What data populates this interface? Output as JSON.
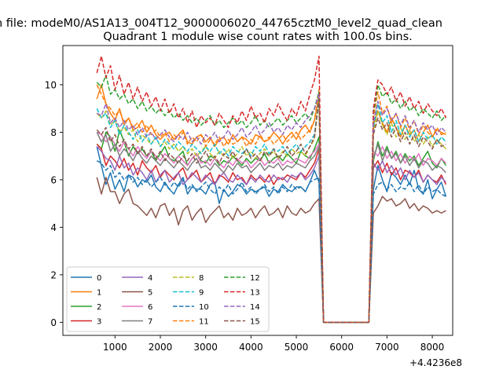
{
  "figure": {
    "suptitle": "n file: modeM0/AS1A13_004T12_9000006020_44765cztM0_level2_quad_clean"
  },
  "chart_data": {
    "type": "line",
    "title": "Quadrant 1 module wise count rates with 100.0s bins.",
    "xlabel": "",
    "ylabel": "",
    "x_offset_label": "+4.4236e8",
    "xlim": [
      -150,
      8450
    ],
    "ylim": [
      -0.55,
      11.65
    ],
    "xticks": [
      1000,
      2000,
      3000,
      4000,
      5000,
      6000,
      7000,
      8000
    ],
    "yticks": [
      0,
      2,
      4,
      6,
      8,
      10
    ],
    "grid": false,
    "legend": {
      "placement": "lower-left",
      "columns": 4
    },
    "x_start": 600,
    "x_step": 100,
    "x_end": 8200,
    "gap_range": [
      5700,
      6700
    ],
    "series": [
      {
        "name": "0",
        "color": "#1f77b4",
        "dash": "solid",
        "seg1": [
          7.4,
          6.6,
          5.8,
          6.3,
          5.6,
          6.0,
          5.5,
          6.2,
          6.1,
          5.7,
          6.0,
          5.9,
          6.2,
          5.7,
          5.5,
          5.9,
          5.6,
          5.4,
          5.8,
          6.1,
          5.4,
          5.7,
          5.6,
          5.6,
          5.4,
          5.8,
          5.9,
          5.0,
          5.6,
          5.3,
          5.5,
          5.8,
          5.7,
          5.4,
          5.6,
          5.5,
          5.6,
          5.7,
          5.3,
          5.6,
          5.5,
          5.8,
          5.6,
          5.5,
          5.7,
          5.7,
          5.5,
          5.9,
          6.4,
          5.9
        ],
        "seg2": [
          5.6,
          6.6,
          6.0,
          5.5,
          6.3,
          6.1,
          5.8,
          6.2,
          5.8,
          6.4,
          5.6,
          5.4,
          6.0,
          5.2,
          5.6,
          5.9,
          5.3
        ]
      },
      {
        "name": "1",
        "color": "#ff7f0e",
        "dash": "solid",
        "seg1": [
          9.4,
          10.0,
          9.2,
          8.8,
          8.5,
          9.0,
          8.3,
          8.6,
          8.1,
          8.2,
          8.5,
          8.0,
          8.3,
          7.9,
          7.7,
          7.9,
          8.0,
          7.7,
          7.9,
          8.1,
          7.6,
          7.5,
          7.8,
          7.9,
          7.6,
          7.8,
          7.4,
          7.7,
          7.8,
          7.5,
          7.9,
          7.6,
          7.8,
          7.7,
          7.5,
          7.9,
          7.8,
          7.6,
          7.7,
          8.0,
          7.8,
          7.5,
          7.8,
          8.0,
          7.7,
          8.1,
          8.3,
          8.0,
          8.5,
          9.5
        ],
        "seg2": [
          8.3,
          8.9,
          8.4,
          8.0,
          8.6,
          8.2,
          7.8,
          8.3,
          7.9,
          8.1,
          7.6,
          8.0,
          8.3,
          7.8,
          8.1,
          8.0,
          7.9
        ]
      },
      {
        "name": "2",
        "color": "#2ca02c",
        "dash": "solid",
        "seg1": [
          7.5,
          7.3,
          8.0,
          7.8,
          7.2,
          8.1,
          7.6,
          7.0,
          7.4,
          7.1,
          7.3,
          7.0,
          7.2,
          6.8,
          7.1,
          7.4,
          6.9,
          6.8,
          7.0,
          7.2,
          6.6,
          6.9,
          7.1,
          6.8,
          6.7,
          7.0,
          6.9,
          6.6,
          6.8,
          6.7,
          7.0,
          6.8,
          6.6,
          6.9,
          6.7,
          6.9,
          6.8,
          7.1,
          6.7,
          6.9,
          7.0,
          6.8,
          7.1,
          6.9,
          6.7,
          7.2,
          7.0,
          6.9,
          7.3,
          7.8
        ],
        "seg2": [
          6.8,
          7.6,
          7.0,
          7.4,
          6.9,
          7.2,
          6.7,
          7.1,
          6.8,
          7.0,
          6.6,
          6.9,
          7.2,
          6.7,
          6.5,
          6.9,
          6.6
        ]
      },
      {
        "name": "3",
        "color": "#d62728",
        "dash": "solid",
        "seg1": [
          7.5,
          7.3,
          6.6,
          7.0,
          6.8,
          6.5,
          6.9,
          6.4,
          6.7,
          6.2,
          6.8,
          6.5,
          6.3,
          6.6,
          6.1,
          6.4,
          6.2,
          6.0,
          6.3,
          6.5,
          6.0,
          6.2,
          6.4,
          5.9,
          6.1,
          6.3,
          5.8,
          6.2,
          6.1,
          5.9,
          6.3,
          6.0,
          6.1,
          5.8,
          6.2,
          6.0,
          6.1,
          5.9,
          6.2,
          5.8,
          6.1,
          6.0,
          6.2,
          6.1,
          6.0,
          6.3,
          6.1,
          6.4,
          6.7,
          7.3
        ],
        "seg2": [
          6.5,
          6.8,
          6.3,
          6.7,
          6.2,
          6.5,
          6.0,
          6.4,
          6.3,
          6.1,
          6.4,
          5.9,
          6.2,
          6.0,
          5.9,
          6.2,
          5.8
        ]
      },
      {
        "name": "4",
        "color": "#9467bd",
        "dash": "solid",
        "seg1": [
          7.4,
          7.2,
          6.9,
          6.8,
          6.4,
          7.0,
          6.5,
          6.7,
          6.2,
          6.5,
          6.3,
          6.0,
          6.4,
          5.9,
          6.2,
          6.4,
          5.9,
          6.1,
          6.3,
          5.8,
          6.0,
          6.3,
          6.1,
          5.9,
          6.2,
          6.0,
          5.8,
          6.1,
          6.3,
          6.0,
          5.9,
          6.2,
          6.0,
          5.8,
          6.1,
          5.9,
          6.2,
          6.0,
          5.9,
          6.2,
          6.0,
          6.1,
          5.9,
          6.2,
          6.1,
          6.3,
          6.0,
          6.2,
          6.5,
          7.0
        ],
        "seg2": [
          6.7,
          6.4,
          6.8,
          6.3,
          6.6,
          6.2,
          6.5,
          6.0,
          6.4,
          6.1,
          6.3,
          5.9,
          6.2,
          6.0,
          5.8,
          6.1,
          5.9
        ]
      },
      {
        "name": "5",
        "color": "#8c564b",
        "dash": "solid",
        "seg1": [
          6.1,
          5.4,
          6.1,
          5.5,
          5.5,
          5.0,
          5.4,
          5.6,
          5.0,
          4.9,
          4.7,
          4.5,
          4.8,
          4.4,
          4.9,
          5.0,
          4.5,
          4.8,
          4.1,
          4.7,
          4.9,
          4.3,
          4.6,
          4.8,
          4.2,
          4.5,
          4.7,
          4.9,
          4.4,
          4.6,
          4.3,
          4.8,
          4.5,
          4.6,
          4.8,
          4.4,
          4.7,
          4.9,
          4.5,
          4.6,
          4.8,
          4.4,
          4.9,
          4.6,
          4.5,
          4.8,
          4.6,
          4.7,
          5.0,
          5.2
        ],
        "seg2": [
          4.6,
          4.9,
          5.3,
          5.1,
          5.2,
          4.9,
          5.0,
          5.2,
          4.8,
          5.0,
          4.7,
          4.9,
          4.8,
          4.6,
          4.7,
          4.6,
          4.7
        ]
      },
      {
        "name": "6",
        "color": "#e377c2",
        "dash": "solid",
        "seg1": [
          8.0,
          7.9,
          7.6,
          7.8,
          7.5,
          7.2,
          7.6,
          7.3,
          7.0,
          7.4,
          7.1,
          6.9,
          7.2,
          7.0,
          6.8,
          7.1,
          6.9,
          6.7,
          7.0,
          6.8,
          6.6,
          6.9,
          7.1,
          6.7,
          6.8,
          6.6,
          6.9,
          6.7,
          6.5,
          6.8,
          6.6,
          6.9,
          6.7,
          6.8,
          6.5,
          6.7,
          6.9,
          6.6,
          6.8,
          6.7,
          6.9,
          6.6,
          6.8,
          6.7,
          6.9,
          6.8,
          6.7,
          7.0,
          7.2,
          7.5
        ],
        "seg2": [
          7.2,
          7.0,
          7.4,
          6.9,
          7.2,
          6.8,
          7.1,
          6.7,
          7.0,
          6.8,
          7.1,
          6.6,
          6.9,
          6.8,
          6.6,
          6.9,
          6.7
        ]
      },
      {
        "name": "7",
        "color": "#7f7f7f",
        "dash": "solid",
        "seg1": [
          8.0,
          7.6,
          7.9,
          7.2,
          7.5,
          7.0,
          7.3,
          7.1,
          6.8,
          7.2,
          6.9,
          6.7,
          7.0,
          6.8,
          6.6,
          6.9,
          6.7,
          6.5,
          6.8,
          6.6,
          6.4,
          6.7,
          6.9,
          6.5,
          6.6,
          6.4,
          6.7,
          6.5,
          6.3,
          6.6,
          6.4,
          6.7,
          6.5,
          6.6,
          6.3,
          6.5,
          6.7,
          6.4,
          6.6,
          6.5,
          6.7,
          6.4,
          6.6,
          6.5,
          6.7,
          6.6,
          6.5,
          6.8,
          7.0,
          7.4
        ],
        "seg2": [
          6.9,
          7.5,
          6.8,
          7.3,
          6.9,
          7.1,
          6.7,
          7.0,
          6.6,
          6.9,
          6.5,
          6.8,
          6.7,
          6.4,
          6.6,
          6.5,
          6.3
        ]
      },
      {
        "name": "8",
        "color": "#bcbd22",
        "dash": "dashed",
        "seg1": [
          8.8,
          8.6,
          8.9,
          8.3,
          8.5,
          8.0,
          8.2,
          7.9,
          8.1,
          7.6,
          7.9,
          7.7,
          7.5,
          7.8,
          7.4,
          7.6,
          7.3,
          7.5,
          7.2,
          7.4,
          7.1,
          7.3,
          7.0,
          7.2,
          7.4,
          7.1,
          6.9,
          7.2,
          7.0,
          7.3,
          6.9,
          7.1,
          7.4,
          7.0,
          7.2,
          6.9,
          7.1,
          7.3,
          7.0,
          7.2,
          6.9,
          7.2,
          7.0,
          7.3,
          7.1,
          7.2,
          7.0,
          7.4,
          7.7,
          9.4
        ],
        "seg2": [
          8.0,
          8.9,
          8.3,
          7.9,
          8.4,
          7.8,
          8.2,
          7.7,
          8.1,
          7.6,
          7.9,
          7.5,
          7.8,
          7.4,
          7.7,
          7.5,
          7.3
        ]
      },
      {
        "name": "9",
        "color": "#17becf",
        "dash": "dashed",
        "seg1": [
          9.0,
          8.6,
          8.8,
          8.2,
          8.5,
          7.9,
          8.3,
          8.0,
          7.7,
          8.1,
          7.6,
          7.9,
          7.5,
          7.8,
          7.4,
          7.7,
          7.5,
          7.3,
          7.6,
          7.4,
          7.2,
          7.5,
          7.3,
          7.1,
          7.4,
          7.2,
          7.5,
          7.1,
          7.3,
          7.0,
          7.4,
          7.2,
          7.1,
          7.3,
          7.0,
          7.4,
          7.2,
          7.5,
          7.1,
          7.3,
          7.2,
          7.4,
          7.1,
          7.3,
          7.5,
          7.2,
          7.4,
          7.6,
          7.9,
          9.5
        ],
        "seg2": [
          8.2,
          9.2,
          8.4,
          8.7,
          8.0,
          8.5,
          7.9,
          8.3,
          7.8,
          8.1,
          7.6,
          8.0,
          7.7,
          7.9,
          7.5,
          7.8,
          7.6
        ]
      },
      {
        "name": "10",
        "color": "#1f77b4",
        "dash": "dashed",
        "seg1": [
          6.8,
          6.7,
          6.4,
          6.6,
          6.1,
          6.3,
          6.0,
          6.2,
          5.9,
          6.1,
          5.8,
          6.0,
          5.7,
          5.9,
          6.1,
          5.8,
          5.6,
          5.9,
          5.7,
          6.0,
          5.6,
          5.8,
          5.5,
          5.7,
          5.9,
          5.6,
          5.4,
          5.7,
          5.5,
          5.8,
          5.4,
          5.6,
          5.9,
          5.5,
          5.7,
          5.4,
          5.6,
          5.8,
          5.5,
          5.7,
          5.4,
          5.7,
          5.5,
          5.8,
          5.6,
          5.7,
          5.5,
          5.9,
          6.0,
          6.1
        ],
        "seg2": [
          5.4,
          5.8,
          5.9,
          5.6,
          5.8,
          5.5,
          5.7,
          5.6,
          5.9,
          5.5,
          5.8,
          5.4,
          5.7,
          5.5,
          5.6,
          5.4,
          5.3
        ]
      },
      {
        "name": "11",
        "color": "#ff7f0e",
        "dash": "dashed",
        "seg1": [
          10.0,
          9.6,
          9.2,
          9.0,
          8.7,
          8.9,
          8.4,
          8.6,
          8.2,
          8.4,
          8.0,
          8.3,
          7.9,
          8.1,
          7.8,
          8.0,
          7.6,
          7.9,
          7.7,
          8.0,
          7.5,
          7.8,
          7.6,
          7.9,
          7.4,
          7.7,
          7.5,
          7.8,
          7.4,
          7.7,
          7.5,
          7.6,
          7.8,
          7.4,
          7.7,
          7.5,
          7.9,
          7.6,
          7.8,
          7.5,
          7.7,
          7.9,
          7.6,
          7.8,
          8.0,
          7.7,
          7.9,
          8.1,
          8.5,
          9.8
        ],
        "seg2": [
          8.6,
          9.7,
          8.8,
          9.1,
          8.4,
          8.8,
          8.2,
          8.6,
          8.1,
          8.5,
          7.9,
          8.3,
          8.0,
          7.8,
          8.2,
          7.9,
          8.0
        ]
      },
      {
        "name": "12",
        "color": "#2ca02c",
        "dash": "dashed",
        "seg1": [
          10.1,
          9.9,
          10.4,
          9.6,
          9.8,
          9.4,
          9.6,
          9.2,
          9.4,
          9.0,
          9.3,
          8.9,
          9.1,
          8.8,
          9.0,
          8.7,
          8.9,
          8.6,
          8.8,
          8.5,
          8.7,
          8.4,
          8.6,
          8.3,
          8.5,
          8.7,
          8.3,
          8.5,
          8.2,
          8.4,
          8.6,
          8.3,
          8.5,
          8.2,
          8.4,
          8.7,
          8.3,
          8.5,
          8.2,
          8.4,
          8.6,
          8.3,
          8.5,
          8.7,
          8.4,
          8.6,
          8.8,
          8.5,
          9.0,
          9.7
        ],
        "seg2": [
          8.8,
          10.0,
          9.5,
          9.7,
          9.2,
          9.4,
          9.0,
          9.3,
          8.9,
          9.1,
          8.7,
          9.0,
          8.8,
          8.6,
          8.9,
          8.5,
          8.7
        ]
      },
      {
        "name": "13",
        "color": "#d62728",
        "dash": "dashed",
        "seg1": [
          10.5,
          11.2,
          10.3,
          10.8,
          9.8,
          10.4,
          9.6,
          10.1,
          9.4,
          9.9,
          9.3,
          9.7,
          9.1,
          9.5,
          8.9,
          9.4,
          8.8,
          9.2,
          8.6,
          9.0,
          8.4,
          8.9,
          8.2,
          8.7,
          8.4,
          8.6,
          8.3,
          8.8,
          8.5,
          8.2,
          8.7,
          8.4,
          8.9,
          8.5,
          9.1,
          8.6,
          8.8,
          8.4,
          9.0,
          8.7,
          9.2,
          8.8,
          8.5,
          9.0,
          8.7,
          9.3,
          8.9,
          9.6,
          10.2,
          11.2
        ],
        "seg2": [
          9.0,
          10.2,
          10.0,
          9.6,
          9.9,
          9.3,
          9.7,
          9.1,
          9.5,
          9.0,
          9.3,
          8.8,
          9.2,
          8.9,
          8.7,
          9.0,
          8.6
        ]
      },
      {
        "name": "14",
        "color": "#9467bd",
        "dash": "dashed",
        "seg1": [
          8.8,
          8.7,
          9.2,
          8.4,
          8.6,
          8.2,
          8.5,
          8.1,
          8.3,
          7.9,
          8.2,
          7.8,
          8.0,
          7.7,
          7.9,
          8.1,
          7.8,
          7.6,
          7.9,
          7.7,
          8.0,
          7.6,
          7.8,
          7.5,
          7.9,
          7.7,
          8.0,
          7.6,
          7.8,
          8.1,
          7.7,
          7.9,
          8.2,
          7.8,
          8.0,
          8.3,
          7.9,
          8.1,
          8.4,
          8.0,
          8.2,
          7.9,
          8.3,
          8.1,
          8.4,
          8.2,
          8.5,
          8.7,
          9.0,
          9.6
        ],
        "seg2": [
          8.4,
          9.3,
          8.7,
          9.0,
          8.5,
          8.8,
          8.3,
          8.7,
          8.2,
          8.5,
          8.0,
          8.4,
          8.1,
          8.3,
          7.9,
          8.2,
          8.0
        ]
      },
      {
        "name": "15",
        "color": "#8c564b",
        "dash": "dashed",
        "seg1": [
          8.1,
          7.9,
          8.2,
          7.6,
          7.9,
          7.4,
          7.7,
          7.3,
          7.5,
          7.1,
          7.4,
          7.0,
          7.3,
          6.9,
          7.2,
          6.8,
          7.1,
          6.9,
          6.7,
          7.0,
          6.8,
          7.1,
          6.7,
          6.9,
          7.2,
          6.8,
          7.0,
          6.7,
          7.1,
          6.9,
          7.2,
          6.8,
          7.0,
          7.3,
          6.9,
          7.1,
          6.8,
          7.2,
          7.0,
          7.3,
          6.9,
          7.1,
          7.4,
          7.0,
          7.2,
          7.5,
          7.1,
          7.4,
          7.8,
          9.4
        ],
        "seg2": [
          7.9,
          8.6,
          8.1,
          8.4,
          7.8,
          8.2,
          7.6,
          8.0,
          7.5,
          7.9,
          7.4,
          7.8,
          7.6,
          7.3,
          7.7,
          7.4,
          7.5
        ]
      }
    ]
  }
}
